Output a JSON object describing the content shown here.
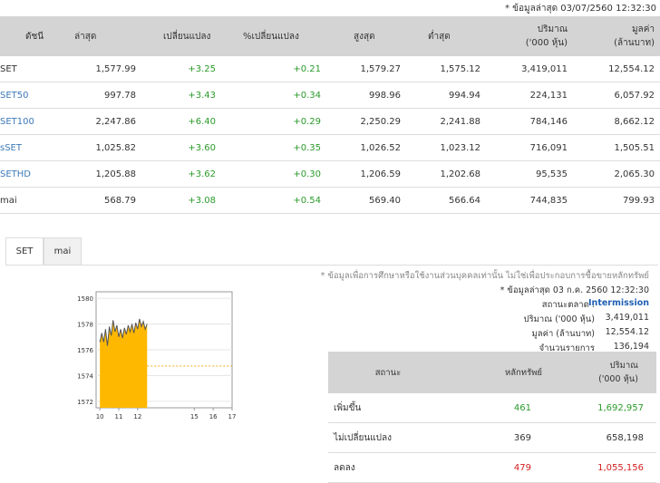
{
  "header": {
    "update_note": "* ข้อมูลล่าสุด 03/07/2560 12:32:30"
  },
  "index_table": {
    "columns": [
      "ดัชนี",
      "ล่าสุด",
      "เปลี่ยนแปลง",
      "%เปลี่ยนแปลง",
      "สูงสุด",
      "ต่ำสุด",
      "ปริมาณ",
      "('000 หุ้น)",
      "มูลค่า",
      "(ล้านบาท)"
    ],
    "rows": [
      {
        "name": "SET",
        "last": "1,577.99",
        "change": "+3.25",
        "pct": "+0.21",
        "high": "1,579.27",
        "low": "1,575.12",
        "volume": "3,419,011",
        "value": "12,554.12"
      },
      {
        "name": "SET50",
        "last": "997.78",
        "change": "+3.43",
        "pct": "+0.34",
        "high": "998.96",
        "low": "994.94",
        "volume": "224,131",
        "value": "6,057.92"
      },
      {
        "name": "SET100",
        "last": "2,247.86",
        "change": "+6.40",
        "pct": "+0.29",
        "high": "2,250.29",
        "low": "2,241.88",
        "volume": "784,146",
        "value": "8,662.12"
      },
      {
        "name": "sSET",
        "last": "1,025.82",
        "change": "+3.60",
        "pct": "+0.35",
        "high": "1,026.52",
        "low": "1,023.12",
        "volume": "716,091",
        "value": "1,505.51"
      },
      {
        "name": "SETHD",
        "last": "1,205.88",
        "change": "+3.62",
        "pct": "+0.30",
        "high": "1,206.59",
        "low": "1,202.68",
        "volume": "95,535",
        "value": "2,065.30"
      },
      {
        "name": "mai",
        "last": "568.79",
        "change": "+3.08",
        "pct": "+0.54",
        "high": "569.40",
        "low": "566.64",
        "volume": "744,835",
        "value": "799.93"
      }
    ]
  },
  "tabs": [
    {
      "label": "SET",
      "active": true
    },
    {
      "label": "mai",
      "active": false
    }
  ],
  "info": {
    "disclaimer": "* ข้อมูลเพื่อการศึกษาหรือใช้งานส่วนบุคคลเท่านั้น ไม่ใช่เพื่อประกอบการซื้อขายหลักทรัพย์",
    "updated": "* ข้อมูลล่าสุด 03 ก.ค. 2560 12:32:30",
    "market_status_label": "สถานะตลาด :",
    "market_status": "Intermission",
    "volume_label": "ปริมาณ ('000 หุ้น)",
    "volume": "3,419,011",
    "value_label": "มูลค่า (ล้านบาท)",
    "value": "12,554.12",
    "trades_label": "จำนวนรายการ",
    "trades": "136,194"
  },
  "status_table": {
    "headers": [
      "สถานะ",
      "หลักทรัพย์",
      "ปริมาณ",
      "('000 หุ้น)"
    ],
    "rows": [
      {
        "label": "เพิ่มขึ้น",
        "count": "461",
        "volume": "1,692,957",
        "color": "#2a9a2a"
      },
      {
        "label": "ไม่เปลี่ยนแปลง",
        "count": "369",
        "volume": "658,198",
        "color": "#333333"
      },
      {
        "label": "ลดลง",
        "count": "479",
        "volume": "1,055,156",
        "color": "#d42020"
      }
    ]
  },
  "chart_data": {
    "type": "area",
    "title": "",
    "xlabel": "",
    "ylabel": "",
    "ylim": [
      1571.5,
      1580.5
    ],
    "xlim": [
      9.8,
      17
    ],
    "y_ticks": [
      "1580",
      "1578",
      "1576",
      "1574",
      "1572"
    ],
    "x_ticks": [
      "10",
      "11",
      "12",
      "15",
      "16",
      "17"
    ],
    "reference_line": 1574.74,
    "fill_color": "#ffb800",
    "line_color": "#555555",
    "x": [
      10.0,
      10.1,
      10.2,
      10.3,
      10.4,
      10.5,
      10.6,
      10.7,
      10.8,
      10.9,
      11.0,
      11.1,
      11.2,
      11.3,
      11.4,
      11.5,
      11.6,
      11.7,
      11.8,
      11.9,
      12.0,
      12.1,
      12.2,
      12.3,
      12.4,
      12.5
    ],
    "y": [
      1576.6,
      1577.3,
      1576.6,
      1577.6,
      1576.3,
      1577.8,
      1577.1,
      1578.3,
      1577.4,
      1577.9,
      1577.0,
      1577.6,
      1576.9,
      1577.7,
      1577.2,
      1577.9,
      1577.4,
      1578.0,
      1577.3,
      1578.1,
      1577.6,
      1578.4,
      1577.8,
      1578.2,
      1577.6,
      1578.0
    ]
  }
}
